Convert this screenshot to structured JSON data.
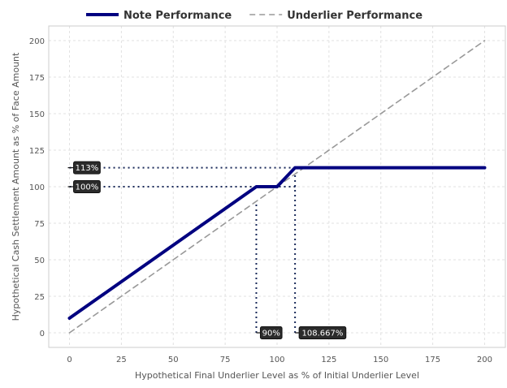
{
  "chart_data": {
    "type": "line",
    "xlabel": "Hypothetical Final Underlier Level as % of Initial Underlier Level",
    "ylabel": "Hypothetical Cash Settlement Amount as % of Face Amount",
    "xlim": [
      -10,
      210
    ],
    "ylim": [
      -10,
      210
    ],
    "xticks": [
      0,
      25,
      50,
      75,
      100,
      125,
      150,
      175,
      200
    ],
    "yticks": [
      0,
      25,
      50,
      75,
      100,
      125,
      150,
      175,
      200
    ],
    "grid": true,
    "legend_position": "top",
    "series": [
      {
        "name": "Note Performance",
        "color": "#000080",
        "style": "solid",
        "x": [
          0,
          90,
          100,
          108.667,
          200
        ],
        "y": [
          10,
          100,
          100,
          113,
          113
        ]
      },
      {
        "name": "Underlier Performance",
        "color": "#999999",
        "style": "dashed",
        "x": [
          0,
          200
        ],
        "y": [
          0,
          200
        ]
      }
    ],
    "reference_lines": [
      {
        "orientation": "horizontal",
        "value": 113,
        "label": "113%"
      },
      {
        "orientation": "horizontal",
        "value": 100,
        "label": "100%"
      },
      {
        "orientation": "vertical",
        "value": 90,
        "label": "90%"
      },
      {
        "orientation": "vertical",
        "value": 108.667,
        "label": "108.667%"
      }
    ],
    "reference_line_color": "#1a2a5a"
  }
}
